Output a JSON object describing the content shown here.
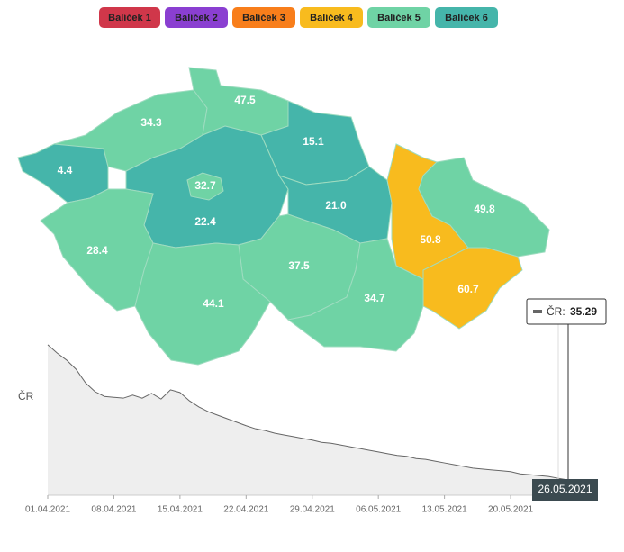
{
  "legend": [
    {
      "name": "Balíček 1",
      "color": "#d0374a"
    },
    {
      "name": "Balíček 2",
      "color": "#8a3fd1"
    },
    {
      "name": "Balíček 3",
      "color": "#f87e1b"
    },
    {
      "name": "Balíček 4",
      "color": "#f8bb1e"
    },
    {
      "name": "Balíček 5",
      "color": "#6fd3a5"
    },
    {
      "name": "Balíček 6",
      "color": "#45b5aa"
    }
  ],
  "map": {
    "type": "choropleth",
    "values": [
      4.4,
      34.3,
      47.5,
      15.1,
      22.4,
      32.7,
      21.0,
      28.4,
      37.5,
      44.1,
      34.7,
      50.8,
      49.8,
      60.7
    ],
    "value_labels": [
      "4.4",
      "34.3",
      "47.5",
      "15.1",
      "22.4",
      "32.7",
      "21.0",
      "28.4",
      "37.5",
      "44.1",
      "34.7",
      "50.8",
      "49.8",
      "60.7"
    ],
    "colors": [
      "#45b5aa",
      "#6fd3a5",
      "#6fd3a5",
      "#45b5aa",
      "#45b5aa",
      "#6fd3a5",
      "#45b5aa",
      "#6fd3a5",
      "#6fd3a5",
      "#6fd3a5",
      "#6fd3a5",
      "#f8bb1e",
      "#6fd3a5",
      "#f8bb1e"
    ]
  },
  "chart_data": {
    "type": "area",
    "x": [
      "01.04.2021",
      "02.04.2021",
      "03.04.2021",
      "04.04.2021",
      "05.04.2021",
      "06.04.2021",
      "07.04.2021",
      "08.04.2021",
      "09.04.2021",
      "10.04.2021",
      "11.04.2021",
      "12.04.2021",
      "13.04.2021",
      "14.04.2021",
      "15.04.2021",
      "16.04.2021",
      "17.04.2021",
      "18.04.2021",
      "19.04.2021",
      "20.04.2021",
      "21.04.2021",
      "22.04.2021",
      "23.04.2021",
      "24.04.2021",
      "25.04.2021",
      "26.04.2021",
      "27.04.2021",
      "28.04.2021",
      "29.04.2021",
      "30.04.2021",
      "01.05.2021",
      "02.05.2021",
      "03.05.2021",
      "04.05.2021",
      "05.05.2021",
      "06.05.2021",
      "07.05.2021",
      "08.05.2021",
      "09.05.2021",
      "10.05.2021",
      "11.05.2021",
      "12.05.2021",
      "13.05.2021",
      "14.05.2021",
      "15.05.2021",
      "16.05.2021",
      "17.05.2021",
      "18.05.2021",
      "19.05.2021",
      "20.05.2021",
      "21.05.2021",
      "22.05.2021",
      "23.05.2021",
      "24.05.2021",
      "25.05.2021",
      "26.05.2021"
    ],
    "series": [
      {
        "name": "ČR",
        "color": "#666666",
        "values": [
          344,
          325,
          309,
          288,
          257,
          237,
          226,
          224,
          222,
          229,
          222,
          233,
          220,
          241,
          235,
          216,
          202,
          191,
          183,
          175,
          167,
          159,
          152,
          148,
          142,
          138,
          134,
          130,
          126,
          121,
          119,
          115,
          111,
          107,
          103,
          99,
          95,
          91,
          89,
          84,
          82,
          78,
          74,
          70,
          66,
          62,
          60,
          58,
          56,
          54,
          49,
          47,
          45,
          43,
          39,
          35.29
        ]
      }
    ],
    "xticks": [
      "01.04.2021",
      "08.04.2021",
      "15.04.2021",
      "22.04.2021",
      "29.04.2021",
      "06.05.2021",
      "13.05.2021",
      "20.05.2021"
    ],
    "ylim": [
      0,
      350
    ],
    "tooltip": {
      "label": "ČR:"
    }
  }
}
